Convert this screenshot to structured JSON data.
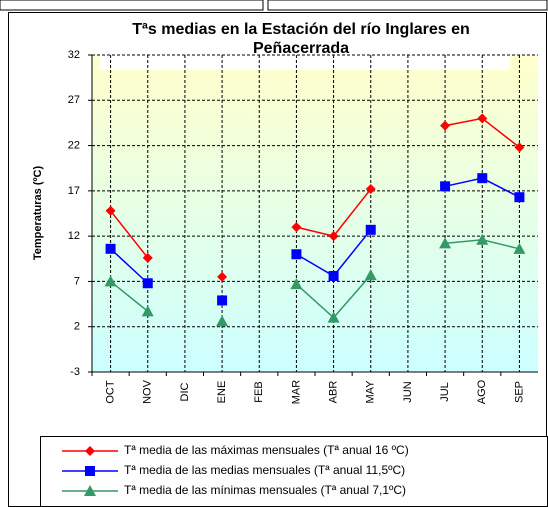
{
  "chart_data": {
    "type": "line",
    "title": "Tªs medias en la Estación del río Inglares en Peñacerrada",
    "y_label": "Temperaturas (ºC)",
    "categories": [
      "OCT",
      "NOV",
      "DIC",
      "ENE",
      "FEB",
      "MAR",
      "ABR",
      "MAY",
      "JUN",
      "JUL",
      "AGO",
      "SEP"
    ],
    "series": [
      {
        "name": "Tª media de las máximas mensuales (Tª anual 16 ºC)",
        "color": "#ff0000",
        "marker": "diamond",
        "values": [
          14.8,
          9.6,
          null,
          7.5,
          null,
          13.0,
          12.0,
          17.2,
          null,
          24.2,
          25.0,
          21.8
        ]
      },
      {
        "name": "Tª media de las medias mensuales (Tª anual 11,5ºC)",
        "color": "#0000ff",
        "marker": "square",
        "values": [
          10.6,
          6.8,
          null,
          4.9,
          null,
          10.0,
          7.6,
          12.7,
          null,
          17.5,
          18.4,
          16.3
        ]
      },
      {
        "name": "Tª media de las mínimas mensuales (Tª anual 7,1ºC)",
        "color": "#339966",
        "marker": "triangle",
        "values": [
          7.0,
          3.7,
          null,
          2.6,
          null,
          6.7,
          3.0,
          7.7,
          null,
          11.2,
          11.6,
          10.6
        ]
      }
    ],
    "ylim": [
      -3,
      32
    ],
    "yticks": [
      -3,
      2,
      7,
      12,
      17,
      22,
      27,
      32
    ],
    "grid": true
  }
}
